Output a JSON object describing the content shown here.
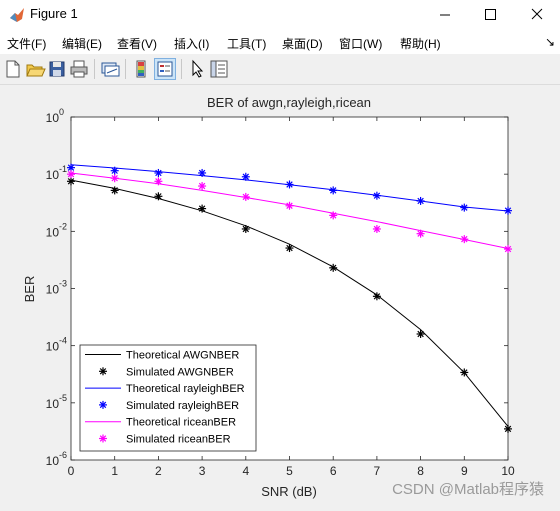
{
  "window": {
    "title": "Figure 1"
  },
  "menu": [
    "文件(F)",
    "编辑(E)",
    "查看(V)",
    "插入(I)",
    "工具(T)",
    "桌面(D)",
    "窗口(W)",
    "帮助(H)"
  ],
  "menu_arrow": "↘",
  "toolbar_icons": [
    "new-figure-icon",
    "open-file-icon",
    "save-icon",
    "print-icon",
    "link-plot-icon",
    "colorbar-icon",
    "legend-icon",
    "edit-plot-pointer-icon",
    "property-inspector-icon"
  ],
  "watermark": "CSDN @Matlab程序猿",
  "chart_data": {
    "type": "line",
    "title": "BER of awgn,rayleigh,ricean",
    "xlabel": "SNR (dB)",
    "ylabel": "BER",
    "xlim": [
      0,
      10
    ],
    "ylim": [
      1e-06,
      1
    ],
    "yscale": "log",
    "x_ticks": [
      "0",
      "1",
      "2",
      "3",
      "4",
      "5",
      "6",
      "7",
      "8",
      "9",
      "10"
    ],
    "y_ticks": [
      {
        "value": 1,
        "base": "10",
        "exp": "0"
      },
      {
        "value": 0.1,
        "base": "10",
        "exp": "-1"
      },
      {
        "value": 0.01,
        "base": "10",
        "exp": "-2"
      },
      {
        "value": 0.001,
        "base": "10",
        "exp": "-3"
      },
      {
        "value": 0.0001,
        "base": "10",
        "exp": "-4"
      },
      {
        "value": 1e-05,
        "base": "10",
        "exp": "-5"
      },
      {
        "value": 1e-06,
        "base": "10",
        "exp": "-6"
      }
    ],
    "legend_position": "bottom-left",
    "grid": false,
    "x": [
      0,
      1,
      2,
      3,
      4,
      5,
      6,
      7,
      8,
      9,
      10
    ],
    "series": [
      {
        "name": "Theoretical AWGNBER",
        "style": "line",
        "color": "#000000",
        "values": [
          0.0786,
          0.0563,
          0.0375,
          0.0229,
          0.0125,
          0.00595,
          0.00239,
          0.000773,
          0.000191,
          3.36e-05,
          3.87e-06
        ]
      },
      {
        "name": "Simulated AWGNBER",
        "style": "marker",
        "color": "#000000",
        "values": [
          0.075,
          0.052,
          0.041,
          0.025,
          0.011,
          0.0051,
          0.0023,
          0.00073,
          0.00016,
          3.4e-05,
          3.5e-06
        ]
      },
      {
        "name": "Theoretical rayleighBER",
        "style": "line",
        "color": "#0000ff",
        "values": [
          0.146,
          0.128,
          0.111,
          0.0945,
          0.0795,
          0.0655,
          0.0533,
          0.0428,
          0.0339,
          0.0267,
          0.0227
        ]
      },
      {
        "name": "Simulated rayleighBER",
        "style": "marker",
        "color": "#0000ff",
        "values": [
          0.13,
          0.115,
          0.105,
          0.105,
          0.09,
          0.066,
          0.052,
          0.042,
          0.034,
          0.026,
          0.023
        ]
      },
      {
        "name": "Theoretical riceanBER",
        "style": "line",
        "color": "#ff00ff",
        "values": [
          0.105,
          0.085,
          0.068,
          0.052,
          0.039,
          0.029,
          0.0208,
          0.0148,
          0.0103,
          0.0072,
          0.005
        ]
      },
      {
        "name": "Simulated riceanBER",
        "style": "marker",
        "color": "#ff00ff",
        "values": [
          0.1,
          0.085,
          0.075,
          0.062,
          0.04,
          0.028,
          0.019,
          0.011,
          0.0091,
          0.0073,
          0.0049
        ]
      }
    ]
  }
}
